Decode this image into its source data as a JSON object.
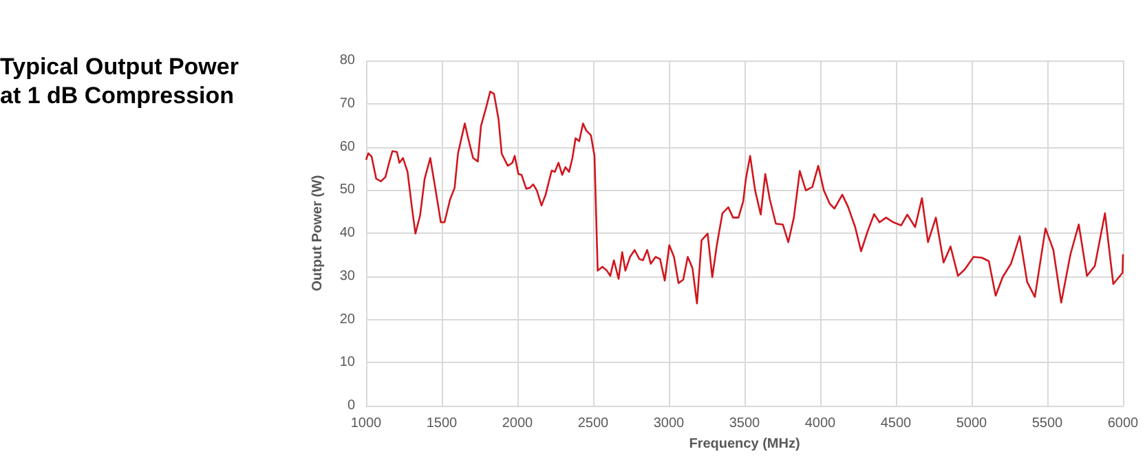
{
  "chart_data": {
    "type": "line",
    "title": "Typical Output Power\nat 1 dB Compression",
    "xlabel": "Frequency (MHz)",
    "ylabel": "Output Power (W)",
    "xlim": [
      1000,
      6000
    ],
    "xticks": [
      1000,
      1500,
      2000,
      2500,
      3000,
      3500,
      4000,
      4500,
      5000,
      5500,
      6000
    ],
    "ylim": [
      0,
      80
    ],
    "yticks": [
      0,
      10,
      20,
      30,
      40,
      50,
      60,
      70,
      80
    ],
    "grid": true,
    "marker": "none",
    "line_style": "solid",
    "series": [
      {
        "color": "#d0161e",
        "x": [
          1000,
          1015,
          1037,
          1067,
          1098,
          1128,
          1152,
          1174,
          1204,
          1220,
          1244,
          1274,
          1302,
          1326,
          1357,
          1387,
          1424,
          1457,
          1494,
          1518,
          1555,
          1585,
          1607,
          1652,
          1677,
          1707,
          1738,
          1759,
          1793,
          1820,
          1845,
          1875,
          1896,
          1936,
          1966,
          1982,
          2006,
          2027,
          2058,
          2082,
          2104,
          2128,
          2159,
          2186,
          2226,
          2247,
          2271,
          2296,
          2317,
          2341,
          2363,
          2384,
          2408,
          2433,
          2454,
          2485,
          2509,
          2530,
          2561,
          2591,
          2613,
          2637,
          2668,
          2692,
          2713,
          2744,
          2774,
          2805,
          2829,
          2857,
          2881,
          2912,
          2942,
          2973,
          3003,
          3034,
          3064,
          3095,
          3125,
          3156,
          3186,
          3216,
          3256,
          3287,
          3317,
          3354,
          3393,
          3424,
          3460,
          3491,
          3509,
          3537,
          3570,
          3607,
          3637,
          3667,
          3707,
          3753,
          3789,
          3826,
          3865,
          3905,
          3948,
          3987,
          4024,
          4063,
          4094,
          4146,
          4185,
          4231,
          4270,
          4313,
          4356,
          4392,
          4435,
          4484,
          4535,
          4575,
          4627,
          4672,
          4712,
          4764,
          4815,
          4861,
          4910,
          4955,
          5013,
          5068,
          5114,
          5159,
          5205,
          5260,
          5318,
          5367,
          5418,
          5488,
          5540,
          5592,
          5653,
          5708,
          5762,
          5814,
          5881,
          5936,
          5997,
          6000
        ],
        "values": [
          57,
          58.5,
          57.7,
          52.6,
          52,
          53,
          56.3,
          59,
          58.8,
          56.3,
          57.4,
          54.2,
          46.2,
          39.9,
          44.1,
          52.6,
          57.4,
          50.5,
          42.5,
          42.5,
          47.8,
          50.5,
          58.4,
          65.4,
          61.6,
          57.4,
          56.6,
          64.8,
          69.1,
          72.8,
          72.3,
          66.4,
          58.4,
          55.6,
          56.3,
          57.9,
          53.7,
          53.5,
          50.3,
          50.5,
          51.3,
          49.9,
          46.4,
          48.9,
          54.5,
          54.2,
          56.3,
          53.5,
          55.3,
          54.2,
          57.4,
          62,
          61.3,
          65.4,
          63.8,
          62.7,
          57.9,
          31.3,
          32.2,
          31.3,
          30.1,
          33.7,
          29.4,
          35.6,
          31.3,
          34.5,
          36.1,
          34,
          33.7,
          36.1,
          32.9,
          34.5,
          34,
          29,
          37.2,
          34.5,
          28.4,
          29.2,
          34.5,
          31.9,
          23.7,
          38.3,
          39.9,
          29.8,
          37.2,
          44.6,
          46,
          43.6,
          43.6,
          47.3,
          52.6,
          57.9,
          49.9,
          44.3,
          53.7,
          47.8,
          42.2,
          42,
          37.9,
          43.6,
          54.4,
          49.9,
          50.7,
          55.6,
          49.9,
          46.8,
          45.7,
          48.9,
          46,
          41.4,
          35.8,
          40.4,
          44.4,
          42.5,
          43.6,
          42.5,
          41.8,
          44.3,
          41.4,
          48.1,
          37.9,
          43.6,
          33.2,
          36.9,
          30.1,
          31.6,
          34.5,
          34.3,
          33.5,
          25.5,
          29.8,
          32.9,
          39.3,
          28.7,
          25.2,
          41.1,
          36.1,
          23.9,
          35.1,
          42,
          30.1,
          32.4,
          44.6,
          28.2,
          30.8,
          35.1
        ]
      }
    ]
  }
}
